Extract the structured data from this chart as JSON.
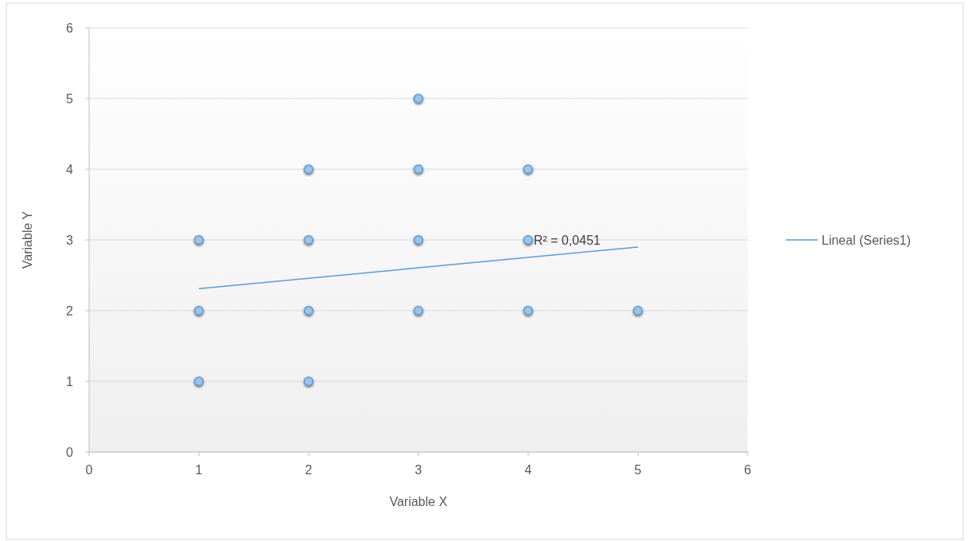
{
  "chart_data": {
    "type": "scatter",
    "xlabel": "Variable X",
    "ylabel": "Variable Y",
    "xlim": [
      0,
      6
    ],
    "ylim": [
      0,
      6
    ],
    "xticks": [
      0,
      1,
      2,
      3,
      4,
      5,
      6
    ],
    "yticks": [
      0,
      1,
      2,
      3,
      4,
      5,
      6
    ],
    "grid": "y",
    "legend": "right",
    "series": [
      {
        "color": "#9dc3e6",
        "marker": "circle",
        "x": [
          1,
          1,
          1,
          2,
          2,
          2,
          2,
          3,
          3,
          3,
          3,
          4,
          4,
          4,
          5
        ],
        "values": [
          3,
          2,
          1,
          4,
          3,
          2,
          1,
          5,
          4,
          3,
          2,
          4,
          3,
          2,
          2
        ]
      },
      {
        "type": "line",
        "name": "Lineal (Series1)",
        "color": "#5b9bd5",
        "marker": "none",
        "x": [
          1,
          5
        ],
        "values": [
          2.31,
          2.9
        ]
      }
    ],
    "annotations": [
      "R² = 0,0451"
    ]
  }
}
